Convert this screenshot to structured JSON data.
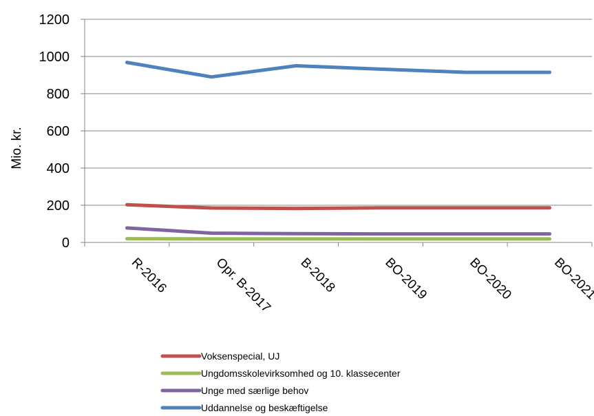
{
  "chart_data": {
    "type": "line",
    "title": "",
    "xlabel": "",
    "ylabel": "Mio. kr.",
    "ylim": [
      0,
      1200
    ],
    "yticks": [
      0,
      200,
      400,
      600,
      800,
      1000,
      1200
    ],
    "grid": "horizontal",
    "legend_position": "bottom",
    "categories": [
      "R-2016",
      "Opr. B-2017",
      "B-2018",
      "BO-2019",
      "BO-2020",
      "BO-2021"
    ],
    "series": [
      {
        "name": "Voksenspecial, UJ",
        "color": "#c0504d",
        "values": [
          203,
          185,
          183,
          186,
          186,
          186
        ]
      },
      {
        "name": " Ungdomsskolevirksomhed og 10. klassecenter",
        "color": "#9bbb59",
        "values": [
          20,
          19,
          19,
          19,
          19,
          19
        ]
      },
      {
        "name": "Unge med særlige behov",
        "color": "#8064a2",
        "values": [
          78,
          50,
          47,
          46,
          46,
          46
        ]
      },
      {
        "name": "Uddannelse og beskæftigelse",
        "color": "#4f81bd",
        "values": [
          968,
          890,
          950,
          932,
          915,
          915
        ]
      }
    ]
  }
}
